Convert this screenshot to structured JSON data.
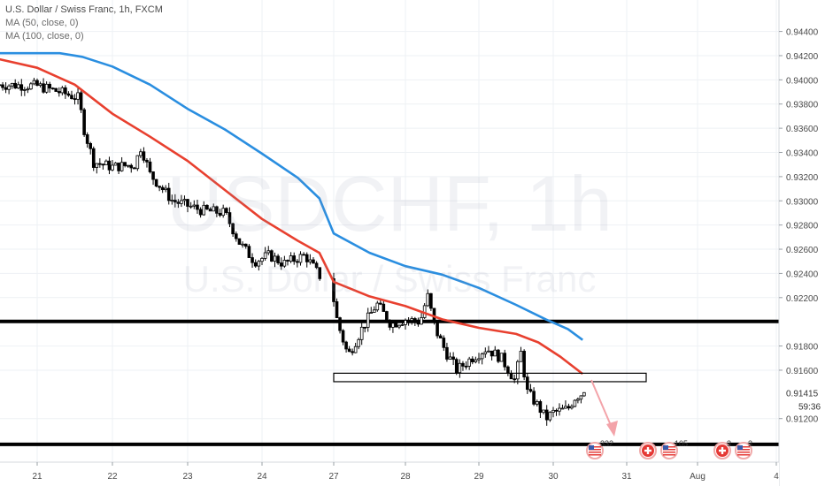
{
  "header": {
    "title": "U.S. Dollar / Swiss Franc, 1h, FXCM",
    "ma50_label": "MA (50, close, 0)",
    "ma100_label": "MA (100, close, 0)"
  },
  "watermark": {
    "symbol": "USDCHF, 1h",
    "name": "U.S. Dollar / Swiss Franc"
  },
  "colors": {
    "up_candle": "#ffffff",
    "down_candle": "#000000",
    "ma50": "#e8402f",
    "ma100": "#2a8ee0",
    "level_line": "#000000",
    "arrow": "#f3a3a9"
  },
  "chart_data": {
    "type": "candlestick",
    "title": "U.S. Dollar / Swiss Franc, 1h, FXCM",
    "x_tick_labels": [
      "21",
      "22",
      "23",
      "24",
      "27",
      "28",
      "29",
      "30",
      "31",
      "Aug",
      "4"
    ],
    "y_tick_labels": [
      "0.94400",
      "0.94200",
      "0.94000",
      "0.93800",
      "0.93600",
      "0.93400",
      "0.93200",
      "0.93000",
      "0.92800",
      "0.92600",
      "0.92400",
      "0.92200",
      "0.91800",
      "0.91600",
      "0.91200"
    ],
    "ylim": [
      0.9084,
      0.9466
    ],
    "current_price": "0.91415",
    "countdown": "59:36",
    "horizontal_levels": [
      {
        "label": "0.92003",
        "value": 0.92003
      },
      {
        "label": "0.90987",
        "value": 0.90987
      }
    ],
    "resistance_zone": {
      "y_top": 0.91575,
      "y_bottom": 0.91505,
      "x_start": 27.0,
      "x_end": 31.1
    },
    "projection_arrow": {
      "from": [
        30.55,
        0.9153
      ],
      "to": [
        30.85,
        0.9102
      ]
    },
    "series": [
      {
        "name": "MA (50, close, 0)",
        "points": [
          [
            20.5,
            0.9417
          ],
          [
            21.0,
            0.941
          ],
          [
            21.5,
            0.9396
          ],
          [
            22.0,
            0.9372
          ],
          [
            22.5,
            0.9353
          ],
          [
            23.0,
            0.9333
          ],
          [
            23.5,
            0.9309
          ],
          [
            24.0,
            0.9285
          ],
          [
            24.5,
            0.9267
          ],
          [
            24.8,
            0.9257
          ],
          [
            27.0,
            0.9233
          ],
          [
            27.5,
            0.9221
          ],
          [
            28.0,
            0.9213
          ],
          [
            28.5,
            0.9202
          ],
          [
            29.0,
            0.9195
          ],
          [
            29.5,
            0.919
          ],
          [
            29.8,
            0.9183
          ],
          [
            30.1,
            0.9171
          ],
          [
            30.4,
            0.9157
          ]
        ]
      },
      {
        "name": "MA (100, close, 0)",
        "points": [
          [
            20.5,
            0.9422
          ],
          [
            21.3,
            0.9422
          ],
          [
            21.6,
            0.9419
          ],
          [
            22.0,
            0.9411
          ],
          [
            22.5,
            0.9396
          ],
          [
            23.0,
            0.9376
          ],
          [
            23.5,
            0.9359
          ],
          [
            24.0,
            0.9339
          ],
          [
            24.5,
            0.9319
          ],
          [
            24.8,
            0.9302
          ],
          [
            27.0,
            0.9273
          ],
          [
            27.5,
            0.9257
          ],
          [
            28.0,
            0.9246
          ],
          [
            28.5,
            0.9239
          ],
          [
            29.0,
            0.9228
          ],
          [
            29.5,
            0.9214
          ],
          [
            29.9,
            0.9202
          ],
          [
            30.2,
            0.9194
          ],
          [
            30.4,
            0.9185
          ]
        ]
      }
    ],
    "candles_anchor": [
      [
        20.5,
        0.9396
      ],
      [
        21.0,
        0.9395
      ],
      [
        21.3,
        0.939
      ],
      [
        21.55,
        0.9385
      ],
      [
        21.62,
        0.936
      ],
      [
        21.75,
        0.9332
      ],
      [
        22.0,
        0.9328
      ],
      [
        22.3,
        0.933
      ],
      [
        22.38,
        0.9345
      ],
      [
        22.5,
        0.9322
      ],
      [
        22.8,
        0.93
      ],
      [
        23.2,
        0.9292
      ],
      [
        23.5,
        0.929
      ],
      [
        23.7,
        0.9265
      ],
      [
        23.9,
        0.925
      ],
      [
        24.1,
        0.9255
      ],
      [
        24.3,
        0.9248
      ],
      [
        24.6,
        0.9255
      ],
      [
        24.8,
        0.9238
      ],
      [
        27.0,
        0.9218
      ],
      [
        27.05,
        0.92
      ],
      [
        27.2,
        0.9172
      ],
      [
        27.4,
        0.9195
      ],
      [
        27.6,
        0.9215
      ],
      [
        27.8,
        0.9198
      ],
      [
        28.0,
        0.9202
      ],
      [
        28.2,
        0.92
      ],
      [
        28.3,
        0.9222
      ],
      [
        28.4,
        0.9195
      ],
      [
        28.55,
        0.9175
      ],
      [
        28.7,
        0.916
      ],
      [
        28.9,
        0.917
      ],
      [
        29.1,
        0.9178
      ],
      [
        29.3,
        0.917
      ],
      [
        29.5,
        0.915
      ],
      [
        29.55,
        0.918
      ],
      [
        29.65,
        0.9142
      ],
      [
        29.8,
        0.913
      ],
      [
        29.9,
        0.912
      ],
      [
        30.0,
        0.9125
      ],
      [
        30.2,
        0.9128
      ],
      [
        30.3,
        0.9138
      ],
      [
        30.42,
        0.91415
      ]
    ]
  },
  "events": [
    {
      "flags": [
        "us-flag"
      ],
      "count": "332"
    },
    {
      "flags": [
        "ch-flag",
        "us-flag"
      ],
      "count": "105"
    },
    {
      "flags": [
        "ch-flag"
      ],
      "count": "3"
    },
    {
      "flags": [
        "us-flag"
      ],
      "count": "3"
    }
  ]
}
